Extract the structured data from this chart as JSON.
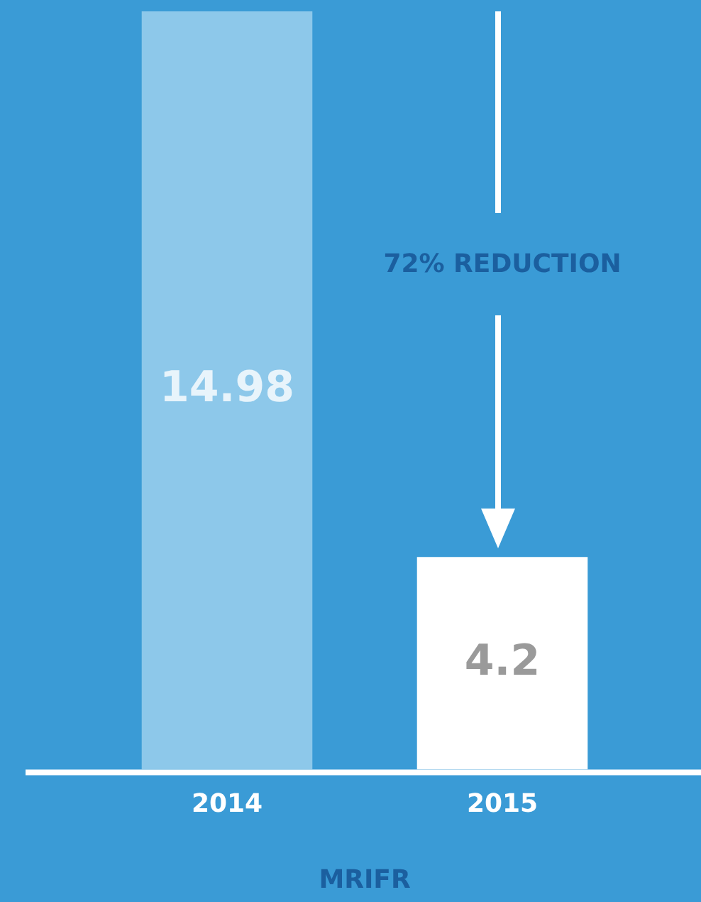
{
  "chart_data": {
    "type": "bar",
    "categories": [
      "2014",
      "2015"
    ],
    "values": [
      14.98,
      4.2
    ],
    "colors": [
      "#8dc8ea",
      "#ffffff"
    ],
    "data_labels": true,
    "xlabel": "MRIFR",
    "annotations": [
      "72% REDUCTION"
    ],
    "grid": false,
    "legend": false
  }
}
